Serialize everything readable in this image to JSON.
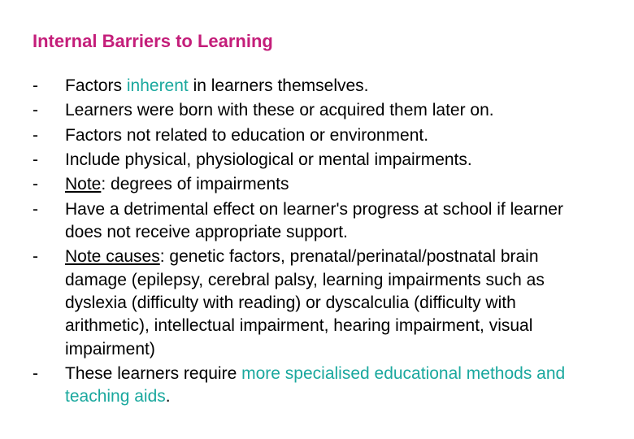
{
  "colors": {
    "title": "#c41e7a",
    "highlight": "#1aa89e",
    "body": "#000000",
    "background": "#ffffff"
  },
  "typography": {
    "title_fontsize": 22,
    "body_fontsize": 21,
    "font_family": "Arial",
    "line_height": 1.35
  },
  "title": "Internal Barriers to Learning",
  "bullets": [
    {
      "segments": [
        {
          "text": "Factors "
        },
        {
          "text": "inherent",
          "teal": true
        },
        {
          "text": " in learners themselves."
        }
      ]
    },
    {
      "segments": [
        {
          "text": "Learners were born with these or acquired them later on."
        }
      ]
    },
    {
      "segments": [
        {
          "text": "Factors not related to education or environment."
        }
      ]
    },
    {
      "segments": [
        {
          "text": "Include physical, physiological or mental impairments."
        }
      ]
    },
    {
      "segments": [
        {
          "text": "Note",
          "underline": true
        },
        {
          "text": ": degrees of impairments"
        }
      ]
    },
    {
      "segments": [
        {
          "text": "Have a detrimental effect on learner's progress at school if learner does not receive appropriate support."
        }
      ]
    },
    {
      "segments": [
        {
          "text": "Note causes",
          "underline": true
        },
        {
          "text": ": genetic factors, prenatal/perinatal/postnatal brain damage (epilepsy, cerebral palsy, learning impairments such as dyslexia (difficulty with reading) or dyscalculia (difficulty with arithmetic), intellectual impairment, hearing impairment, visual impairment)"
        }
      ]
    },
    {
      "segments": [
        {
          "text": "These learners require "
        },
        {
          "text": "more specialised educational methods and teaching aids",
          "teal": true
        },
        {
          "text": "."
        }
      ]
    }
  ]
}
